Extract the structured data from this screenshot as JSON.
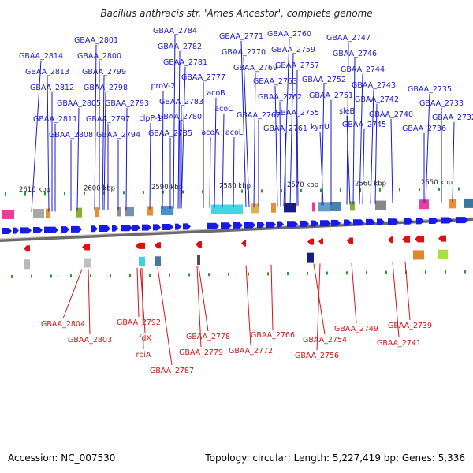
{
  "title": "Bacillus anthracis str. 'Ames Ancestor', complete genome",
  "footer": {
    "accession": "Accession: NC_007530",
    "summary": "Topology: circular; Length: 5,227,419 bp; Genes: 5,336"
  },
  "colors": {
    "top_label": "#1a1acc",
    "bottom_label": "#d01818",
    "forward_gene": "#1a1ae6",
    "reverse_gene": "#e01010",
    "backbone": "#8a8a8a",
    "tick": "#2a9a2a"
  },
  "scale_labels": [
    "2610 kbp",
    "2600 kbp",
    "2590 kbp",
    "2580 kbp",
    "2570 kbp",
    "2560 kbp",
    "2550 kbp"
  ],
  "top_labels": [
    "GBAA_2814",
    "GBAA_2813",
    "GBAA_2812",
    "GBAA_2811",
    "GBAA_2808",
    "GBAA_2801",
    "GBAA_2800",
    "GBAA_2799",
    "GBAA_2798",
    "GBAA_2805",
    "GBAA_2797",
    "GBAA_2794",
    "GBAA_2793",
    "GBAA_2784",
    "GBAA_2782",
    "GBAA_2781",
    "proV-2",
    "GBAA_2783",
    "clpP-1",
    "GBAA_2780",
    "GBAA_2785",
    "GBAA_2777",
    "acoB",
    "acoC",
    "acoA",
    "acoL",
    "GBAA_2771",
    "GBAA_2770",
    "GBAA_2769",
    "GBAA_2767",
    "GBAA_2760",
    "GBAA_2759",
    "GBAA_2757",
    "GBAA_2763",
    "GBAA_2762",
    "GBAA_2761",
    "GBAA_2755",
    "GBAA_2752",
    "GBAA_2751",
    "kynU",
    "GBAA_2747",
    "GBAA_2746",
    "GBAA_2744",
    "GBAA_2743",
    "GBAA_2742",
    "sleB",
    "GBAA_2740",
    "GBAA_2745",
    "GBAA_2735",
    "GBAA_2733",
    "GBAA_2732",
    "GBAA_2736"
  ],
  "bottom_labels": [
    "GBAA_2804",
    "GBAA_2803",
    "GBAA_2792",
    "fdX",
    "rpiA",
    "GBAA_2787",
    "GBAA_2778",
    "GBAA_2779",
    "GBAA_2772",
    "GBAA_2766",
    "GBAA_2754",
    "GBAA_2756",
    "GBAA_2749",
    "GBAA_2739",
    "GBAA_2741"
  ]
}
